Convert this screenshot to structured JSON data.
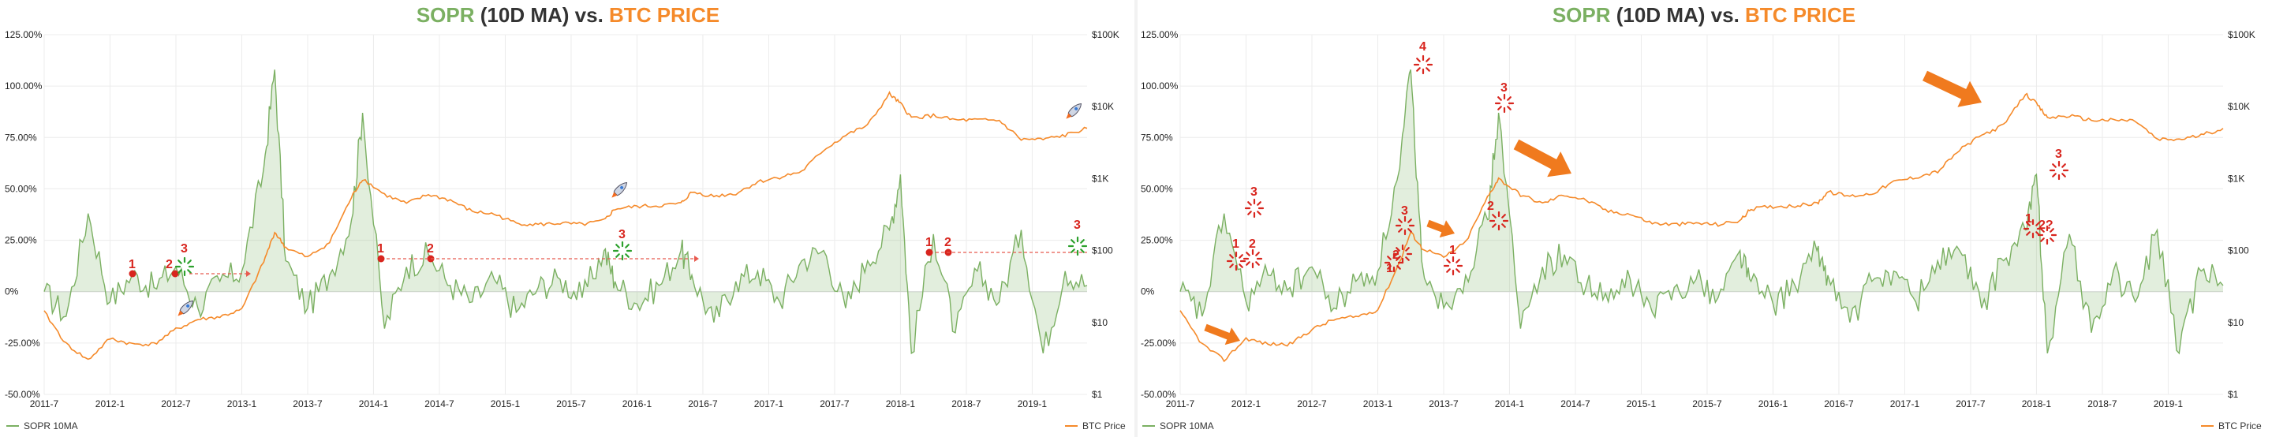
{
  "chart_data": [
    {
      "type": "line",
      "title_parts": [
        "SOPR",
        " (10D MA) vs. ",
        "BTC PRICE"
      ],
      "y_left": {
        "ticks": [
          "125.00%",
          "100.00%",
          "75.00%",
          "50.00%",
          "25.00%",
          "0%",
          "-25.00%",
          "-50.00%"
        ],
        "range": [
          -50,
          125
        ]
      },
      "y_right": {
        "ticks": [
          "$100K",
          "$10K",
          "$1K",
          "$100",
          "$10",
          "$1"
        ],
        "scale": "log",
        "range": [
          1,
          100000
        ]
      },
      "x_ticks": [
        "2011-7",
        "2012-1",
        "2012-7",
        "2013-1",
        "2013-7",
        "2014-1",
        "2014-7",
        "2015-1",
        "2015-7",
        "2016-1",
        "2016-7",
        "2017-1",
        "2017-7",
        "2018-1",
        "2018-7",
        "2019-1"
      ],
      "x_range": [
        "2011-07",
        "2019-06"
      ],
      "grid": true,
      "legend": [
        {
          "name": "SOPR 10MA",
          "color": "#7bb062",
          "position": "bottom-left"
        },
        {
          "name": "BTC Price",
          "color": "#f58a2a",
          "position": "bottom-right"
        }
      ],
      "series": [
        {
          "name": "SOPR 10MA",
          "axis": "left",
          "x": [
            "2011-07",
            "2011-09",
            "2011-11",
            "2012-01",
            "2012-03",
            "2012-05",
            "2012-07",
            "2012-09",
            "2012-11",
            "2013-01",
            "2013-03",
            "2013-04",
            "2013-05",
            "2013-07",
            "2013-09",
            "2013-11",
            "2013-12",
            "2014-02",
            "2014-04",
            "2014-06",
            "2014-08",
            "2014-10",
            "2014-12",
            "2015-02",
            "2015-04",
            "2015-06",
            "2015-08",
            "2015-10",
            "2015-11",
            "2016-01",
            "2016-03",
            "2016-05",
            "2016-06",
            "2016-08",
            "2016-10",
            "2016-12",
            "2017-02",
            "2017-04",
            "2017-06",
            "2017-08",
            "2017-10",
            "2017-12",
            "2018-01",
            "2018-02",
            "2018-04",
            "2018-06",
            "2018-08",
            "2018-10",
            "2018-12",
            "2019-02",
            "2019-04",
            "2019-06"
          ],
          "values": [
            0,
            -12,
            38,
            -5,
            8,
            2,
            12,
            -8,
            5,
            10,
            60,
            108,
            15,
            -8,
            8,
            35,
            87,
            -18,
            12,
            18,
            3,
            -5,
            6,
            -10,
            2,
            6,
            -3,
            20,
            5,
            -6,
            3,
            20,
            8,
            -15,
            5,
            10,
            -5,
            15,
            20,
            -8,
            15,
            30,
            57,
            -30,
            28,
            -20,
            10,
            -5,
            30,
            -30,
            10,
            3
          ]
        },
        {
          "name": "BTC Price",
          "axis": "right",
          "x": [
            "2011-07",
            "2011-09",
            "2011-11",
            "2012-01",
            "2012-03",
            "2012-05",
            "2012-07",
            "2012-09",
            "2012-11",
            "2013-01",
            "2013-03",
            "2013-04",
            "2013-05",
            "2013-07",
            "2013-09",
            "2013-11",
            "2013-12",
            "2014-02",
            "2014-04",
            "2014-06",
            "2014-08",
            "2014-10",
            "2014-12",
            "2015-02",
            "2015-04",
            "2015-06",
            "2015-08",
            "2015-10",
            "2015-11",
            "2016-01",
            "2016-03",
            "2016-05",
            "2016-06",
            "2016-08",
            "2016-10",
            "2016-12",
            "2017-02",
            "2017-04",
            "2017-06",
            "2017-08",
            "2017-10",
            "2017-12",
            "2018-01",
            "2018-02",
            "2018-04",
            "2018-06",
            "2018-08",
            "2018-10",
            "2018-12",
            "2019-02",
            "2019-04",
            "2019-06"
          ],
          "values": [
            14,
            5,
            3,
            6,
            5,
            5,
            8,
            11,
            12,
            15,
            70,
            180,
            110,
            80,
            130,
            550,
            1000,
            600,
            450,
            600,
            500,
            350,
            320,
            240,
            230,
            240,
            230,
            260,
            380,
            410,
            420,
            450,
            650,
            570,
            620,
            900,
            1050,
            1250,
            2500,
            4000,
            5500,
            15000,
            11000,
            7000,
            7500,
            6500,
            6500,
            6400,
            3500,
            3500,
            4000,
            5000
          ]
        }
      ],
      "annotations": [
        {
          "label": "1",
          "color": "red"
        },
        {
          "label": "2",
          "color": "red"
        },
        {
          "label": "3",
          "color": "red"
        },
        {
          "label": "1",
          "color": "red"
        },
        {
          "label": "2",
          "color": "red"
        },
        {
          "label": "3",
          "color": "red"
        },
        {
          "label": "1",
          "color": "red"
        },
        {
          "label": "2",
          "color": "red"
        },
        {
          "label": "3",
          "color": "red"
        }
      ]
    },
    {
      "type": "line",
      "title_parts": [
        "SOPR",
        " (10D MA) vs. ",
        "BTC PRICE"
      ],
      "y_left": {
        "ticks": [
          "125.00%",
          "100.00%",
          "75.00%",
          "50.00%",
          "25.00%",
          "0%",
          "-25.00%",
          "-50.00%"
        ],
        "range": [
          -50,
          125
        ]
      },
      "y_right": {
        "ticks": [
          "$100K",
          "$10K",
          "$1K",
          "$100",
          "$10",
          "$1"
        ],
        "scale": "log",
        "range": [
          1,
          100000
        ]
      },
      "x_ticks": [
        "2011-7",
        "2012-1",
        "2012-7",
        "2013-1",
        "2013-7",
        "2014-1",
        "2014-7",
        "2015-1",
        "2015-7",
        "2016-1",
        "2016-7",
        "2017-1",
        "2017-7",
        "2018-1",
        "2018-7",
        "2019-1"
      ],
      "x_range": [
        "2011-07",
        "2019-06"
      ],
      "grid": true,
      "legend": [
        {
          "name": "SOPR 10MA",
          "color": "#7bb062",
          "position": "bottom-left"
        },
        {
          "name": "BTC Price",
          "color": "#f58a2a",
          "position": "bottom-right"
        }
      ],
      "annotations": [
        {
          "label": "1",
          "color": "red"
        },
        {
          "label": "2",
          "color": "red"
        },
        {
          "label": "3",
          "color": "red"
        },
        {
          "label": "1",
          "color": "red"
        },
        {
          "label": "2",
          "color": "red"
        },
        {
          "label": "3",
          "color": "red"
        },
        {
          "label": "4",
          "color": "red"
        },
        {
          "label": "1",
          "color": "red"
        },
        {
          "label": "2",
          "color": "red"
        },
        {
          "label": "3",
          "color": "red"
        },
        {
          "label": "1",
          "color": "red"
        },
        {
          "label": "2?",
          "color": "red"
        },
        {
          "label": "3",
          "color": "red"
        }
      ]
    }
  ]
}
